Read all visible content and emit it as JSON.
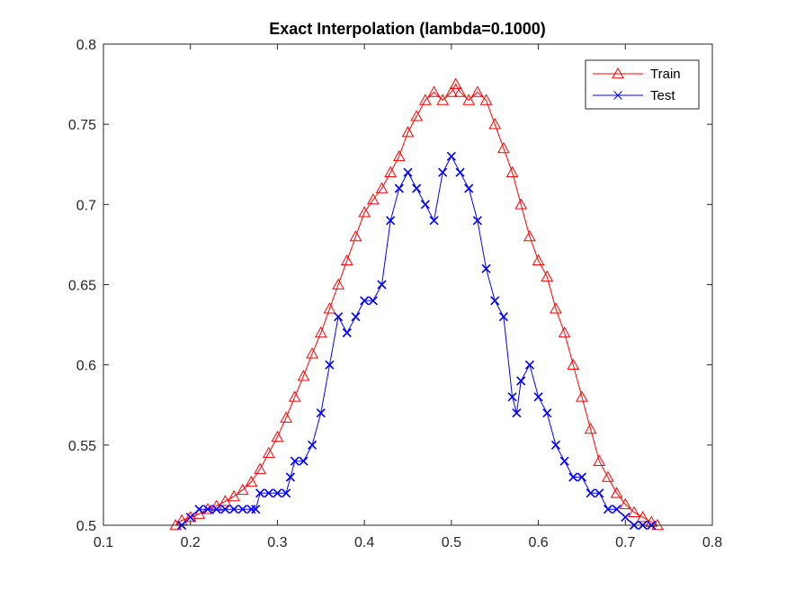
{
  "chart_data": {
    "type": "line",
    "title": "Exact Interpolation (lambda=0.1000)",
    "xlabel": "",
    "ylabel": "",
    "xlim": [
      0.1,
      0.8
    ],
    "ylim": [
      0.5,
      0.8
    ],
    "xticks": [
      "0.1",
      "0.2",
      "0.3",
      "0.4",
      "0.5",
      "0.6",
      "0.7",
      "0.8"
    ],
    "yticks": [
      "0.5",
      "0.55",
      "0.6",
      "0.65",
      "0.7",
      "0.75",
      "0.8"
    ],
    "legend_position": "top-right",
    "series": [
      {
        "name": "Train",
        "color": "#ff0000",
        "marker": "triangle",
        "x": [
          0.183,
          0.19,
          0.2,
          0.21,
          0.22,
          0.23,
          0.24,
          0.25,
          0.26,
          0.27,
          0.28,
          0.29,
          0.3,
          0.31,
          0.32,
          0.33,
          0.34,
          0.35,
          0.36,
          0.37,
          0.38,
          0.39,
          0.4,
          0.41,
          0.42,
          0.43,
          0.44,
          0.45,
          0.46,
          0.47,
          0.48,
          0.49,
          0.5,
          0.505,
          0.51,
          0.52,
          0.53,
          0.54,
          0.55,
          0.56,
          0.57,
          0.58,
          0.59,
          0.6,
          0.61,
          0.62,
          0.63,
          0.64,
          0.65,
          0.66,
          0.67,
          0.68,
          0.69,
          0.7,
          0.71,
          0.72,
          0.73,
          0.737
        ],
        "y": [
          0.5,
          0.503,
          0.505,
          0.507,
          0.51,
          0.512,
          0.515,
          0.518,
          0.522,
          0.527,
          0.535,
          0.545,
          0.555,
          0.567,
          0.58,
          0.593,
          0.607,
          0.62,
          0.635,
          0.65,
          0.665,
          0.68,
          0.695,
          0.703,
          0.71,
          0.72,
          0.73,
          0.745,
          0.755,
          0.765,
          0.77,
          0.765,
          0.77,
          0.775,
          0.77,
          0.765,
          0.77,
          0.765,
          0.75,
          0.735,
          0.72,
          0.7,
          0.68,
          0.665,
          0.655,
          0.635,
          0.62,
          0.6,
          0.58,
          0.56,
          0.54,
          0.53,
          0.52,
          0.513,
          0.508,
          0.505,
          0.502,
          0.5
        ]
      },
      {
        "name": "Test",
        "color": "#0000ff",
        "marker": "x",
        "x": [
          0.19,
          0.2,
          0.21,
          0.22,
          0.23,
          0.24,
          0.25,
          0.26,
          0.27,
          0.275,
          0.28,
          0.29,
          0.3,
          0.31,
          0.315,
          0.32,
          0.33,
          0.34,
          0.35,
          0.36,
          0.37,
          0.38,
          0.39,
          0.4,
          0.41,
          0.42,
          0.43,
          0.44,
          0.45,
          0.46,
          0.47,
          0.48,
          0.49,
          0.5,
          0.51,
          0.52,
          0.53,
          0.54,
          0.55,
          0.56,
          0.57,
          0.575,
          0.58,
          0.59,
          0.6,
          0.61,
          0.62,
          0.63,
          0.64,
          0.65,
          0.66,
          0.67,
          0.68,
          0.69,
          0.7,
          0.71,
          0.72,
          0.73
        ],
        "y": [
          0.5,
          0.505,
          0.51,
          0.51,
          0.51,
          0.51,
          0.51,
          0.51,
          0.51,
          0.51,
          0.52,
          0.52,
          0.52,
          0.52,
          0.53,
          0.54,
          0.54,
          0.55,
          0.57,
          0.6,
          0.63,
          0.62,
          0.63,
          0.64,
          0.64,
          0.65,
          0.69,
          0.71,
          0.72,
          0.71,
          0.7,
          0.69,
          0.72,
          0.73,
          0.72,
          0.71,
          0.69,
          0.66,
          0.64,
          0.63,
          0.58,
          0.57,
          0.59,
          0.6,
          0.58,
          0.57,
          0.55,
          0.54,
          0.53,
          0.53,
          0.52,
          0.52,
          0.51,
          0.51,
          0.505,
          0.5,
          0.5,
          0.5
        ]
      }
    ]
  }
}
